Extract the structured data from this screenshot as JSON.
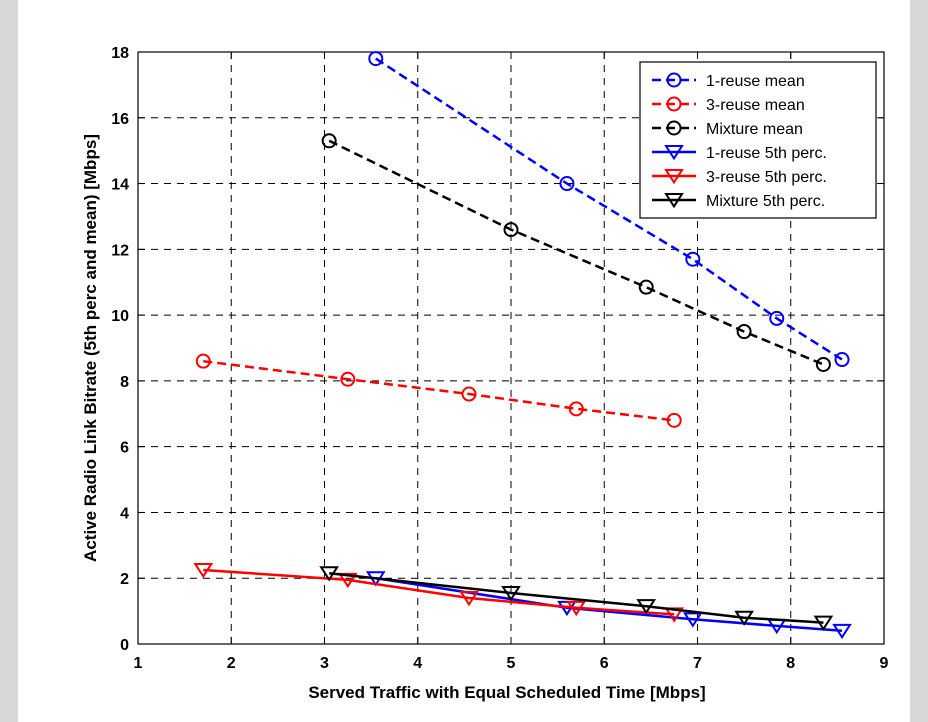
{
  "chart_data": {
    "type": "line",
    "title": "",
    "xlabel": "Served Traffic with Equal Scheduled Time [Mbps]",
    "ylabel": "Active Radio Link Bitrate (5th perc and mean) [Mbps]",
    "xlim": [
      1,
      9
    ],
    "ylim": [
      0,
      18
    ],
    "xticks": [
      1,
      2,
      3,
      4,
      5,
      6,
      7,
      8,
      9
    ],
    "yticks": [
      0,
      2,
      4,
      6,
      8,
      10,
      12,
      14,
      16,
      18
    ],
    "grid": true,
    "grid_style": "dashed",
    "legend_position": "top-right",
    "series": [
      {
        "name": "1-reuse mean",
        "color": "#0000ff",
        "line": "dashed",
        "marker": "circle",
        "points": [
          [
            3.55,
            17.8
          ],
          [
            5.6,
            14.0
          ],
          [
            6.95,
            11.7
          ],
          [
            7.85,
            9.9
          ],
          [
            8.55,
            8.65
          ]
        ]
      },
      {
        "name": "3-reuse mean",
        "color": "#ff0000",
        "line": "dashed",
        "marker": "circle",
        "points": [
          [
            1.7,
            8.6
          ],
          [
            3.25,
            8.05
          ],
          [
            4.55,
            7.6
          ],
          [
            5.7,
            7.15
          ],
          [
            6.75,
            6.8
          ]
        ]
      },
      {
        "name": "Mixture mean",
        "color": "#000000",
        "line": "dashed",
        "marker": "circle",
        "points": [
          [
            3.05,
            15.3
          ],
          [
            5.0,
            12.6
          ],
          [
            6.45,
            10.85
          ],
          [
            7.5,
            9.5
          ],
          [
            8.35,
            8.5
          ]
        ]
      },
      {
        "name": "1-reuse 5th perc.",
        "color": "#0000ff",
        "line": "solid",
        "marker": "triangle-down",
        "points": [
          [
            3.55,
            2.0
          ],
          [
            5.6,
            1.1
          ],
          [
            6.95,
            0.75
          ],
          [
            7.85,
            0.55
          ],
          [
            8.55,
            0.4
          ]
        ]
      },
      {
        "name": "3-reuse 5th perc.",
        "color": "#ff0000",
        "line": "solid",
        "marker": "triangle-down",
        "points": [
          [
            1.7,
            2.25
          ],
          [
            3.25,
            1.95
          ],
          [
            4.55,
            1.4
          ],
          [
            5.7,
            1.1
          ],
          [
            6.75,
            0.9
          ]
        ]
      },
      {
        "name": "Mixture 5th perc.",
        "color": "#000000",
        "line": "solid",
        "marker": "triangle-down",
        "points": [
          [
            3.05,
            2.15
          ],
          [
            5.0,
            1.55
          ],
          [
            6.45,
            1.15
          ],
          [
            7.5,
            0.8
          ],
          [
            8.35,
            0.65
          ]
        ]
      }
    ]
  }
}
